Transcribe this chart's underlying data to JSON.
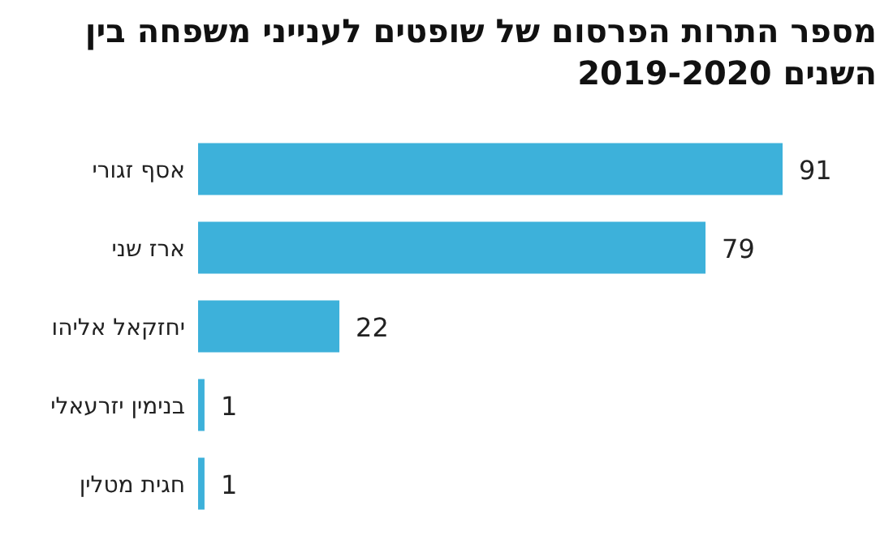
{
  "chart_data": {
    "type": "bar",
    "orientation": "horizontal",
    "title": "מספר התרות הפרסום של שופטים לענייני משפחה בין השנים 2019-2020",
    "categories": [
      "אסף זגורי",
      "ארז שני",
      "יחזקאל אליהו",
      "בנימין יזרעאלי",
      "חגית מטלין"
    ],
    "values": [
      91,
      79,
      22,
      1,
      1
    ],
    "color": "#3db1da",
    "data_labels": true
  }
}
